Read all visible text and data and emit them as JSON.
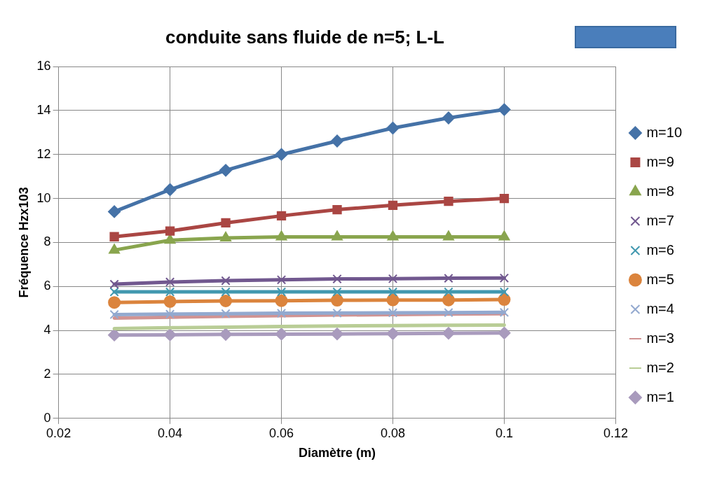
{
  "chart_data": {
    "type": "line",
    "title": "conduite sans fluide de n=5; L-L",
    "xlabel": "Diamètre (m)",
    "ylabel": "Fréquence Hzx103",
    "x": [
      0.03,
      0.04,
      0.05,
      0.06,
      0.07,
      0.08,
      0.09,
      0.1
    ],
    "xlim": [
      0.02,
      0.12
    ],
    "xticks": [
      {
        "value": 0.02,
        "label": "0.02"
      },
      {
        "value": 0.04,
        "label": "0.04"
      },
      {
        "value": 0.06,
        "label": "0.06"
      },
      {
        "value": 0.08,
        "label": "0.08"
      },
      {
        "value": 0.1,
        "label": "0.1"
      },
      {
        "value": 0.12,
        "label": "0.12"
      }
    ],
    "ylim": [
      0,
      16
    ],
    "yticks": [
      0,
      2,
      4,
      6,
      8,
      10,
      12,
      14,
      16
    ],
    "grid": true,
    "legend": "right",
    "line_style": "solid",
    "series": [
      {
        "name": "m=10",
        "color": "#4572a7",
        "marker": "diamond",
        "values": [
          9.4,
          10.4,
          11.28,
          12.0,
          12.61,
          13.2,
          13.66,
          14.04
        ]
      },
      {
        "name": "m=9",
        "color": "#aa4643",
        "marker": "square",
        "values": [
          8.26,
          8.52,
          8.89,
          9.21,
          9.49,
          9.69,
          9.87,
          10.0
        ]
      },
      {
        "name": "m=8",
        "color": "#89a54e",
        "marker": "triangle",
        "values": [
          7.65,
          8.1,
          8.2,
          8.25,
          8.25,
          8.25,
          8.25,
          8.25
        ]
      },
      {
        "name": "m=7",
        "color": "#71588f",
        "marker": "cross",
        "values": [
          6.1,
          6.2,
          6.26,
          6.3,
          6.34,
          6.35,
          6.37,
          6.38
        ]
      },
      {
        "name": "m=6",
        "color": "#4198af",
        "marker": "cross",
        "values": [
          5.75,
          5.75,
          5.75,
          5.75,
          5.75,
          5.75,
          5.75,
          5.75
        ]
      },
      {
        "name": "m=5",
        "color": "#db843d",
        "marker": "circle",
        "values": [
          5.27,
          5.31,
          5.34,
          5.35,
          5.37,
          5.38,
          5.38,
          5.4
        ]
      },
      {
        "name": "m=4",
        "color": "#93a9cf",
        "marker": "cross",
        "values": [
          4.72,
          4.74,
          4.76,
          4.78,
          4.79,
          4.8,
          4.81,
          4.82
        ]
      },
      {
        "name": "m=3",
        "color": "#d19392",
        "marker": "none",
        "values": [
          4.56,
          4.6,
          4.64,
          4.67,
          4.7,
          4.72,
          4.74,
          4.76
        ]
      },
      {
        "name": "m=2",
        "color": "#b9cd96",
        "marker": "none",
        "values": [
          4.08,
          4.12,
          4.15,
          4.18,
          4.2,
          4.22,
          4.23,
          4.24
        ]
      },
      {
        "name": "m=1",
        "color": "#a99bbd",
        "marker": "diamond",
        "values": [
          3.79,
          3.8,
          3.82,
          3.83,
          3.84,
          3.85,
          3.87,
          3.88
        ]
      }
    ]
  }
}
